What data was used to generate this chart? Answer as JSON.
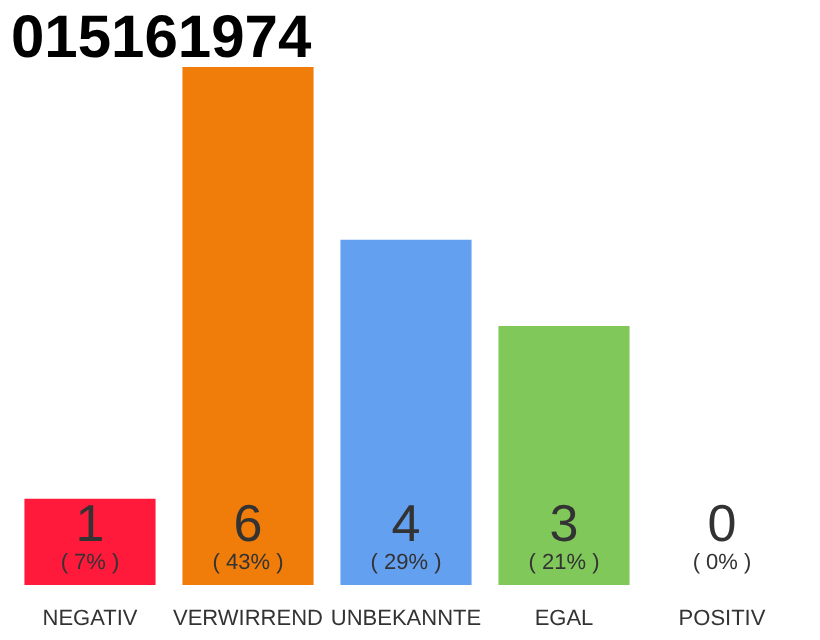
{
  "chart_data": {
    "type": "bar",
    "title": "015161974",
    "data_labels": true,
    "categories": [
      "NEGATIV",
      "VERWIRREND",
      "UNBEKANNTE",
      "EGAL",
      "POSITIV"
    ],
    "series": [
      {
        "colors": [
          "#ff1a3c",
          "#f07d0a",
          "#64a0f0",
          "#80c85a",
          "#80c85a"
        ],
        "values": [
          1,
          6,
          4,
          3,
          0
        ]
      }
    ],
    "annotations": [
      {
        "text": "( 7% )",
        "x": "NEGATIV",
        "y": 0
      },
      {
        "text": "( 43% )",
        "x": "VERWIRREND",
        "y": 0
      },
      {
        "text": "( 29% )",
        "x": "UNBEKANNTE",
        "y": 0
      },
      {
        "text": "( 21% )",
        "x": "EGAL",
        "y": 0
      },
      {
        "text": "( 0% )",
        "x": "POSITIV",
        "y": 0
      }
    ],
    "grid": false
  }
}
